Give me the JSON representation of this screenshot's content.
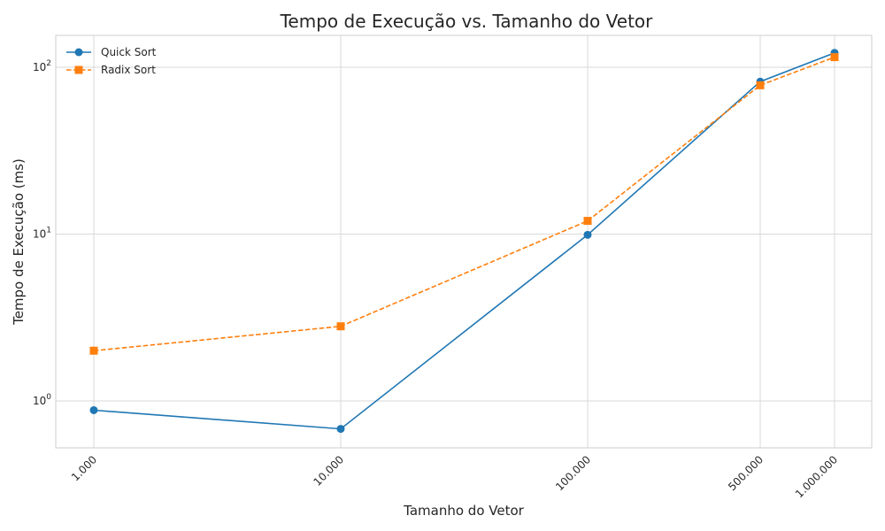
{
  "chart_data": {
    "type": "line",
    "title": "Tempo de Execução vs. Tamanho do Vetor",
    "xlabel": "Tamanho do Vetor",
    "ylabel": "Tempo de Execução (ms)",
    "x_scale": "log",
    "y_scale": "log",
    "x": [
      1000,
      10000,
      100000,
      500000,
      1000000
    ],
    "x_tick_labels": [
      "1.000",
      "10.000",
      "100.000",
      "500.000",
      "1.000.000"
    ],
    "y_ticks": [
      {
        "value": 1,
        "base": "10",
        "exp": "0"
      },
      {
        "value": 10,
        "base": "10",
        "exp": "1"
      },
      {
        "value": 100,
        "base": "10",
        "exp": "2"
      }
    ],
    "ylim": [
      0.55,
      160
    ],
    "grid": true,
    "legend_position": "top-left",
    "series": [
      {
        "name": "Quick Sort",
        "values": [
          0.88,
          0.68,
          9.9,
          82,
          122
        ],
        "color": "#1f77b4",
        "marker": "circle",
        "line_style": "solid"
      },
      {
        "name": "Radix Sort",
        "values": [
          2.0,
          2.8,
          12.0,
          78,
          115
        ],
        "color": "#ff7f0e",
        "marker": "square",
        "line_style": "dashed"
      }
    ]
  }
}
